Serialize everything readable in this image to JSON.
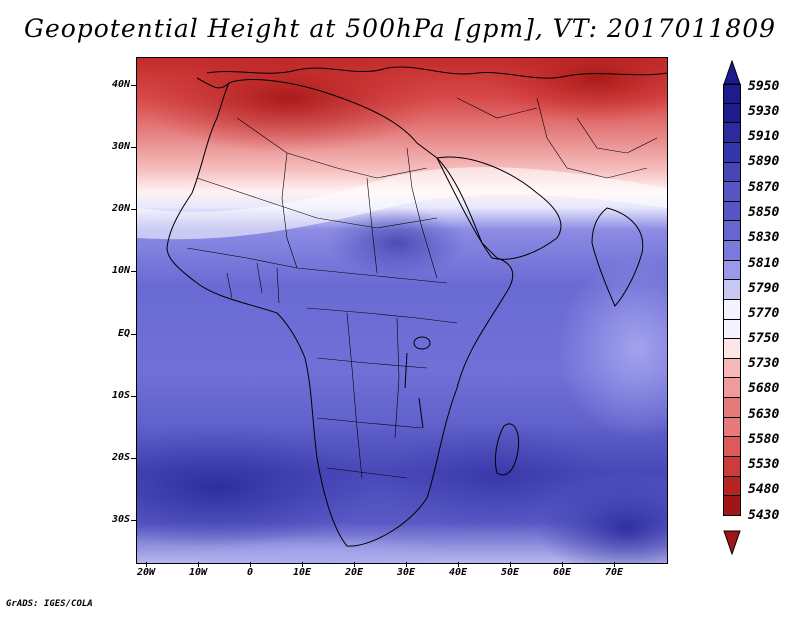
{
  "title": "Geopotential Height at 500hPa [gpm], VT: 2017011809",
  "footer": "GrADS: IGES/COLA",
  "lat_labels": [
    "40N",
    "30N",
    "20N",
    "10N",
    "EQ",
    "10S",
    "20S",
    "30S"
  ],
  "lon_labels": [
    "20W",
    "10W",
    "0",
    "10E",
    "20E",
    "30E",
    "40E",
    "50E",
    "60E",
    "70E"
  ],
  "colorbar": {
    "labels": [
      "5950",
      "5930",
      "5910",
      "5890",
      "5870",
      "5850",
      "5830",
      "5810",
      "5790",
      "5770",
      "5750",
      "5730",
      "5680",
      "5630",
      "5580",
      "5530",
      "5480",
      "5430"
    ],
    "colors": [
      "#1e1a90",
      "#2b2a9e",
      "#3636ac",
      "#4646b8",
      "#5555c4",
      "#6666d0",
      "#7a7adc",
      "#9a9ae8",
      "#c8c8f4",
      "#f4f4ff",
      "#ffe6e6",
      "#f8b8b8",
      "#f09a9a",
      "#e67a7a",
      "#dc5a5a",
      "#cc3c3c",
      "#b82424",
      "#a01616"
    ]
  },
  "colors": {
    "high": "#1e1a90",
    "low": "#a01616",
    "neutral": "#ffffff"
  }
}
